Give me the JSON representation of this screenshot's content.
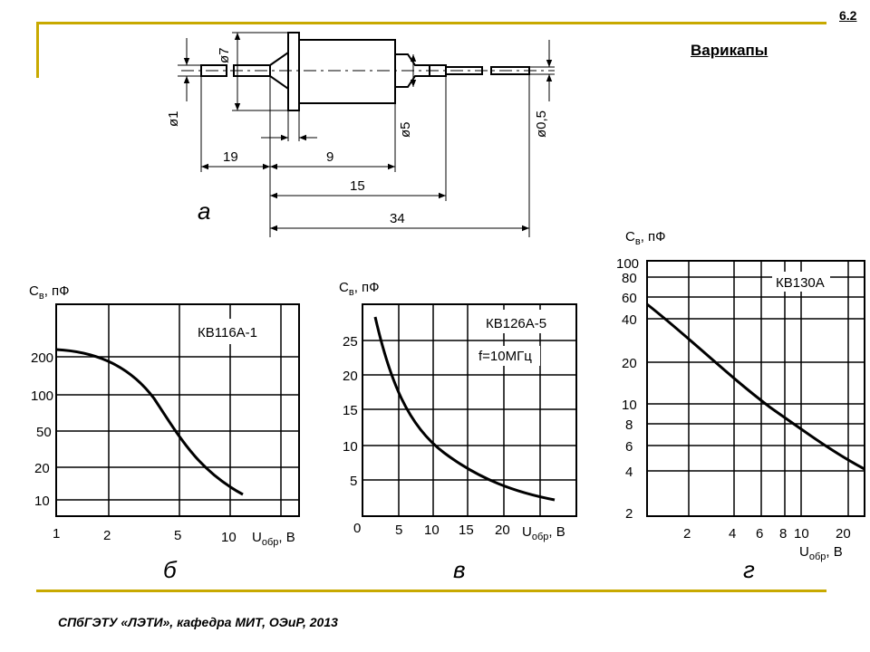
{
  "page_number": "6.2",
  "title": "Варикапы",
  "footer": "СПбГЭТУ «ЛЭТИ», кафедра МИТ, ОЭиР, 2013",
  "drawing": {
    "label": "а",
    "dims": {
      "d1": "ø1",
      "d7": "ø7",
      "d5": "ø5",
      "d05": "ø0,5",
      "l19": "19",
      "l9": "9",
      "l15": "15",
      "l34": "34"
    }
  },
  "graphs": {
    "b": {
      "label": "б",
      "ylabel_main": "C",
      "ylabel_sub": "в",
      "ylabel_unit": ", пФ",
      "xlabel_main": "U",
      "xlabel_sub": "обр",
      "xlabel_unit": ", В",
      "device": "КВ116А-1",
      "yticks": [
        "200",
        "100",
        "50",
        "20",
        "10"
      ],
      "xticks": [
        "1",
        "2",
        "5",
        "10"
      ]
    },
    "v": {
      "label": "в",
      "ylabel_main": "C",
      "ylabel_sub": "в",
      "ylabel_unit": ", пФ",
      "xlabel_main": "U",
      "xlabel_sub": "обр",
      "xlabel_unit": ", В",
      "device": "КВ126А-5",
      "note": "f=10МГц",
      "yticks": [
        "25",
        "20",
        "15",
        "10",
        "5"
      ],
      "xticks": [
        "0",
        "5",
        "10",
        "15",
        "20"
      ]
    },
    "g": {
      "label": "г",
      "ylabel_main": "C",
      "ylabel_sub": "в",
      "ylabel_unit": ", пФ",
      "xlabel_main": "U",
      "xlabel_sub": "обр",
      "xlabel_unit": ", В",
      "device": "КВ130А",
      "yticks": [
        "100",
        "80",
        "60",
        "40",
        "20",
        "10",
        "8",
        "6",
        "4",
        "2"
      ],
      "xticks": [
        "2",
        "4",
        "6",
        "8",
        "10",
        "20"
      ]
    }
  }
}
